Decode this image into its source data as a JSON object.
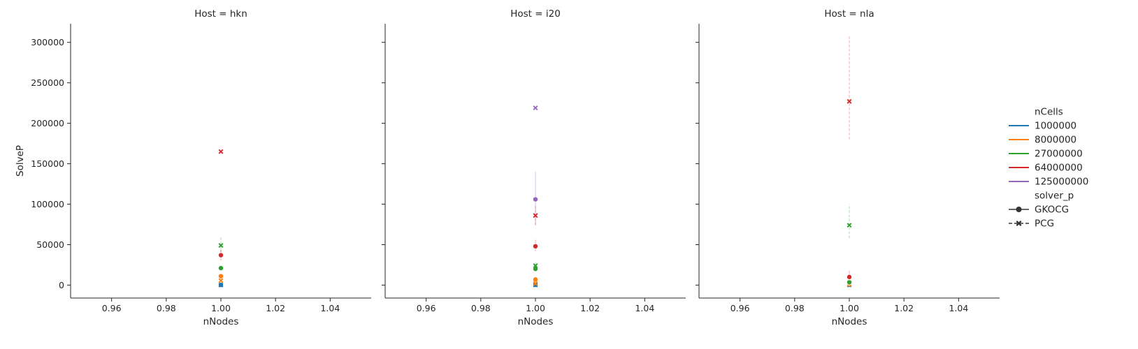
{
  "chart_data": {
    "type": "scatter",
    "facet_variable": "Host",
    "facets": [
      {
        "title": "Host = hkn",
        "series": [
          {
            "name": "1000000",
            "solver_p": "GKOCG",
            "x": [
              1.0
            ],
            "y": [
              200
            ],
            "ci": []
          },
          {
            "name": "1000000",
            "solver_p": "PCG",
            "x": [
              1.0
            ],
            "y": [
              100
            ],
            "ci": []
          },
          {
            "name": "8000000",
            "solver_p": "GKOCG",
            "x": [
              1.0
            ],
            "y": [
              11000
            ],
            "ci": [
              9000,
              13000
            ]
          },
          {
            "name": "8000000",
            "solver_p": "PCG",
            "x": [
              1.0
            ],
            "y": [
              5500
            ],
            "ci": [
              4000,
              7000
            ]
          },
          {
            "name": "27000000",
            "solver_p": "GKOCG",
            "x": [
              1.0
            ],
            "y": [
              21000
            ],
            "ci": [
              19000,
              23000
            ]
          },
          {
            "name": "27000000",
            "solver_p": "PCG",
            "x": [
              1.0
            ],
            "y": [
              49000
            ],
            "ci": [
              40000,
              60000
            ]
          },
          {
            "name": "64000000",
            "solver_p": "GKOCG",
            "x": [
              1.0
            ],
            "y": [
              37000
            ],
            "ci": [
              30000,
              45000
            ]
          },
          {
            "name": "64000000",
            "solver_p": "PCG",
            "x": [
              1.0
            ],
            "y": [
              165000
            ],
            "ci": []
          }
        ]
      },
      {
        "title": "Host = i20",
        "series": [
          {
            "name": "1000000",
            "solver_p": "GKOCG",
            "x": [
              1.0
            ],
            "y": [
              300
            ],
            "ci": []
          },
          {
            "name": "1000000",
            "solver_p": "PCG",
            "x": [
              1.0
            ],
            "y": [
              200
            ],
            "ci": []
          },
          {
            "name": "8000000",
            "solver_p": "GKOCG",
            "x": [
              1.0
            ],
            "y": [
              7000
            ],
            "ci": [
              5000,
              9000
            ]
          },
          {
            "name": "8000000",
            "solver_p": "PCG",
            "x": [
              1.0
            ],
            "y": [
              2000
            ],
            "ci": [
              1000,
              3500
            ]
          },
          {
            "name": "27000000",
            "solver_p": "GKOCG",
            "x": [
              1.0
            ],
            "y": [
              20000
            ],
            "ci": [
              18000,
              22000
            ]
          },
          {
            "name": "27000000",
            "solver_p": "PCG",
            "x": [
              1.0
            ],
            "y": [
              24000
            ],
            "ci": [
              20000,
              28000
            ]
          },
          {
            "name": "64000000",
            "solver_p": "GKOCG",
            "x": [
              1.0
            ],
            "y": [
              48000
            ],
            "ci": [
              42000,
              56000
            ]
          },
          {
            "name": "64000000",
            "solver_p": "PCG",
            "x": [
              1.0
            ],
            "y": [
              86000
            ],
            "ci": [
              74000,
              98000
            ]
          },
          {
            "name": "125000000",
            "solver_p": "GKOCG",
            "x": [
              1.0
            ],
            "y": [
              106000
            ],
            "ci": [
              74000,
              140000
            ]
          },
          {
            "name": "125000000",
            "solver_p": "PCG",
            "x": [
              1.0
            ],
            "y": [
              219000
            ],
            "ci": []
          }
        ]
      },
      {
        "title": "Host = nla",
        "series": [
          {
            "name": "1000000",
            "solver_p": "GKOCG",
            "x": [
              1.0
            ],
            "y": [
              300
            ],
            "ci": []
          },
          {
            "name": "1000000",
            "solver_p": "PCG",
            "x": [
              1.0
            ],
            "y": [
              150
            ],
            "ci": []
          },
          {
            "name": "8000000",
            "solver_p": "GKOCG",
            "x": [
              1.0
            ],
            "y": [
              2000
            ],
            "ci": [
              500,
              4000
            ]
          },
          {
            "name": "8000000",
            "solver_p": "PCG",
            "x": [
              1.0
            ],
            "y": [
              800
            ],
            "ci": []
          },
          {
            "name": "27000000",
            "solver_p": "GKOCG",
            "x": [
              1.0
            ],
            "y": [
              3500
            ],
            "ci": [
              2000,
              5000
            ]
          },
          {
            "name": "27000000",
            "solver_p": "PCG",
            "x": [
              1.0
            ],
            "y": [
              74000
            ],
            "ci": [
              58000,
              100000
            ]
          },
          {
            "name": "64000000",
            "solver_p": "GKOCG",
            "x": [
              1.0
            ],
            "y": [
              10000
            ],
            "ci": [
              7000,
              18000
            ]
          },
          {
            "name": "64000000",
            "solver_p": "PCG",
            "x": [
              1.0
            ],
            "y": [
              227000
            ],
            "ci": [
              180000,
              307000
            ]
          }
        ]
      }
    ],
    "xlabel": "nNodes",
    "ylabel": "SolveP",
    "xlim": [
      0.945,
      1.055
    ],
    "ylim": [
      -16000,
      323000
    ],
    "xticks": [
      "0.96",
      "0.98",
      "1.00",
      "1.02",
      "1.04"
    ],
    "xtick_values": [
      0.96,
      0.98,
      1.0,
      1.02,
      1.04
    ],
    "yticks": [
      "0",
      "50000",
      "100000",
      "150000",
      "200000",
      "250000",
      "300000"
    ],
    "ytick_values": [
      0,
      50000,
      100000,
      150000,
      200000,
      250000,
      300000
    ],
    "grid": false,
    "legend": {
      "placement": "right",
      "hue_title": "nCells",
      "hue_entries": [
        {
          "label": "1000000",
          "color": "#1f77b4"
        },
        {
          "label": "8000000",
          "color": "#ff7f0e"
        },
        {
          "label": "27000000",
          "color": "#2ca02c"
        },
        {
          "label": "64000000",
          "color": "#d62728"
        },
        {
          "label": "125000000",
          "color": "#9467bd"
        }
      ],
      "style_title": "solver_p",
      "style_entries": [
        {
          "label": "GKOCG",
          "marker": "circle",
          "line": "solid"
        },
        {
          "label": "PCG",
          "marker": "x",
          "line": "dashed"
        }
      ]
    }
  }
}
